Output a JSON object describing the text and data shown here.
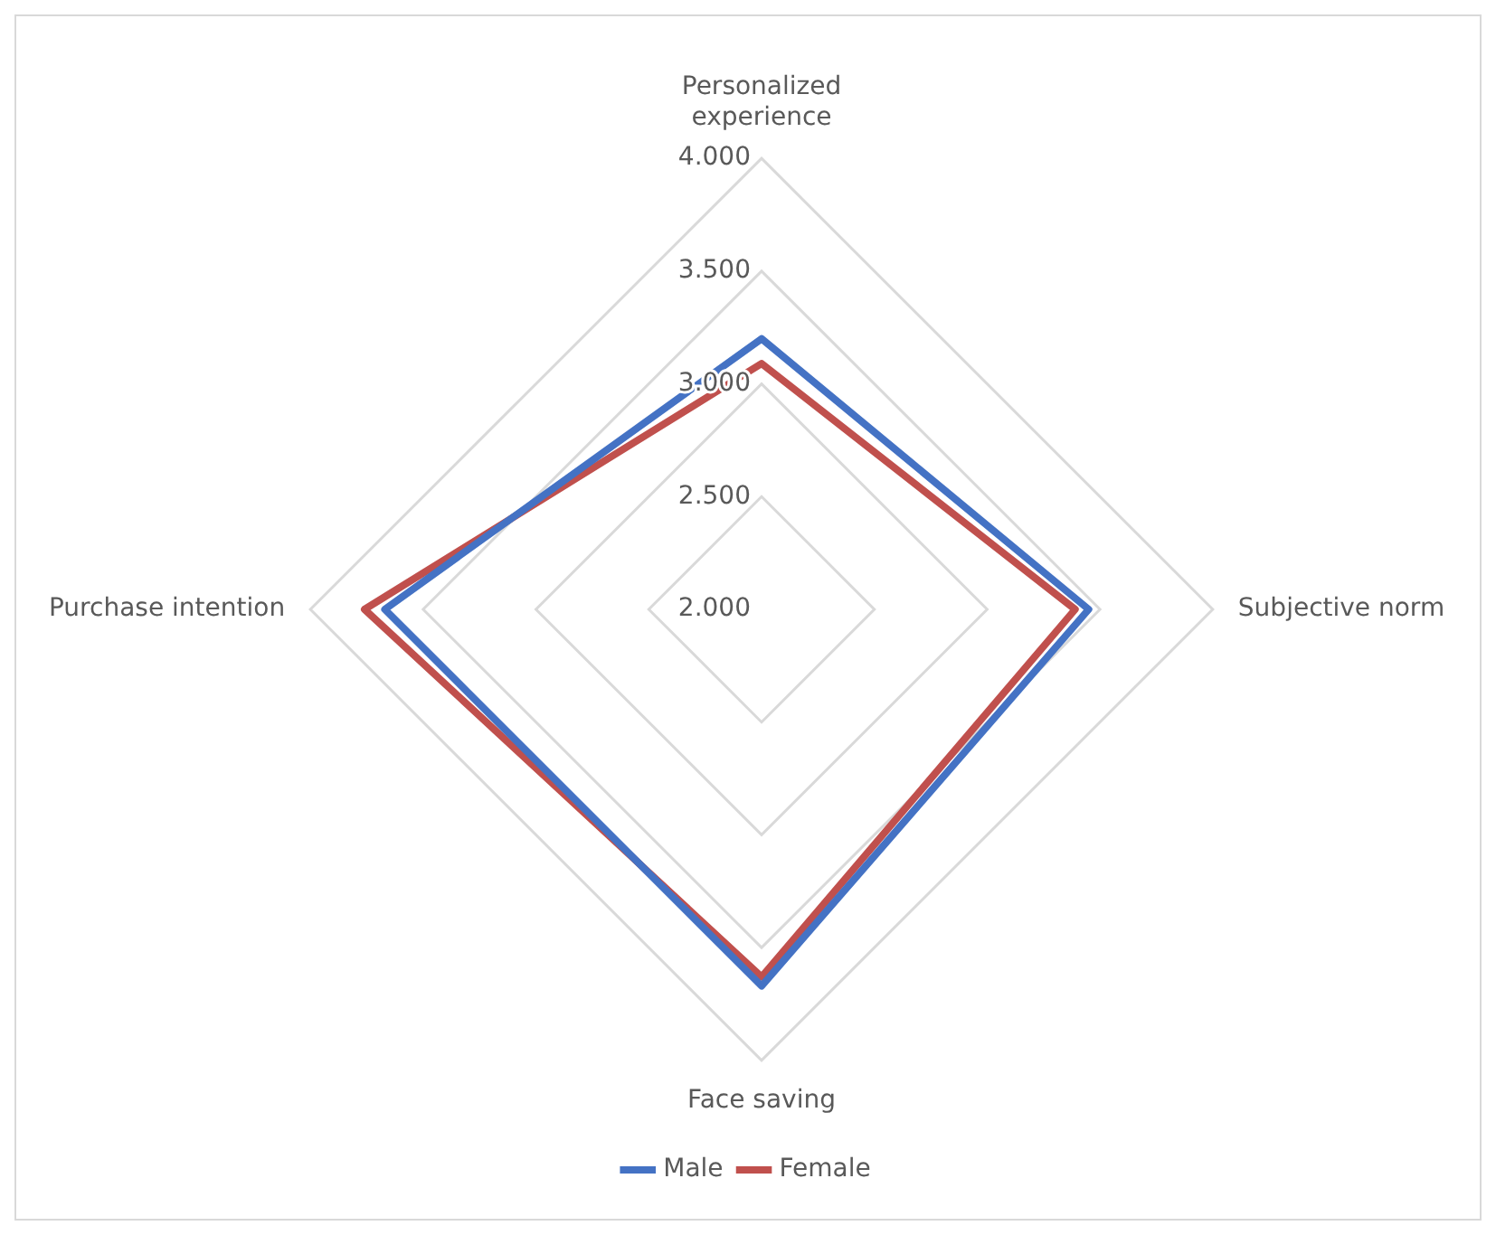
{
  "chart_data": {
    "type": "radar",
    "categories": [
      "Personalized experience",
      "Subjective norm",
      "Face saving",
      "Purchase intention"
    ],
    "series": [
      {
        "name": "Male",
        "color": "#4472c4",
        "values": [
          3.2,
          3.45,
          3.67,
          3.67
        ]
      },
      {
        "name": "Female",
        "color": "#c0504d",
        "values": [
          3.09,
          3.39,
          3.63,
          3.76
        ]
      }
    ],
    "ylim": [
      2,
      4
    ],
    "yticks": [
      {
        "value": 2,
        "label": "2.000"
      },
      {
        "value": 2.5,
        "label": "2.500"
      },
      {
        "value": 3,
        "label": "3.000"
      },
      {
        "value": 3.5,
        "label": "3.500"
      },
      {
        "value": 4,
        "label": "4.000"
      }
    ],
    "grid": true,
    "legend": "bottom"
  }
}
